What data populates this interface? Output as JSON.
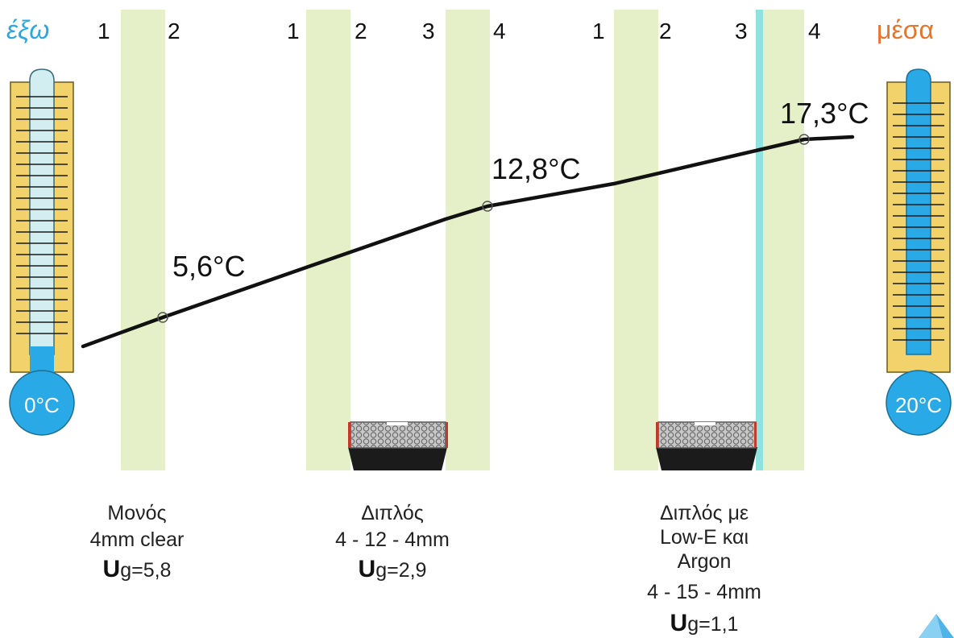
{
  "outside_label": "έξω",
  "inside_label": "μέσα",
  "outside_thermometer": {
    "label": "0°C",
    "level_fraction": 0.0
  },
  "inside_thermometer": {
    "label": "20°C",
    "level_fraction": 1.0
  },
  "surface_numbers": {
    "single": [
      "1",
      "2"
    ],
    "double": [
      "1",
      "2",
      "3",
      "4"
    ],
    "lowe": [
      "1",
      "2",
      "3",
      "4"
    ]
  },
  "temperatures": {
    "single": "5,6°C",
    "double": "12,8°C",
    "lowe": "17,3°C"
  },
  "captions": {
    "single": {
      "lines": [
        "Μονός",
        "4mm clear"
      ],
      "u_letter": "U",
      "u_rest": "g=5,8"
    },
    "double": {
      "lines": [
        "Διπλός",
        "4 - 12 - 4mm"
      ],
      "u_letter": "U",
      "u_rest": "g=2,9"
    },
    "lowe": {
      "lines": [
        "Διπλός με",
        "Low-E και",
        "Argon",
        "4 - 15 - 4mm"
      ],
      "u_letter": "U",
      "u_rest": "g=1,1"
    }
  },
  "colors": {
    "glass": "#e6f0c8",
    "glass_edge": "#d6e6a8",
    "lowe_coating": "#8fe3de",
    "thermo_frame": "#f2d36b",
    "thermo_blue": "#29a9e6",
    "thermo_tube": "#d3eef0",
    "outside_text": "#2aa7df",
    "inside_text": "#e8742a",
    "spacer": "#b7b7b7"
  }
}
